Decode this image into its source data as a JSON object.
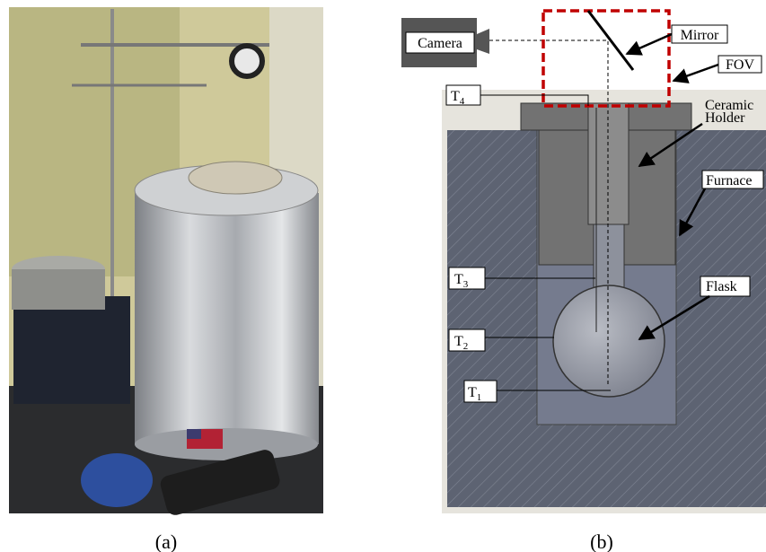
{
  "panel_a": {
    "caption": "(a)"
  },
  "panel_b": {
    "caption": "(b)",
    "camera": "Camera",
    "mirror": "Mirror",
    "fov": "FOV",
    "ceramic_holder": [
      "Ceramic",
      "Holder"
    ],
    "furnace": "Furnace",
    "flask": "Flask",
    "t4": {
      "symbol": "T",
      "index": "4"
    },
    "t3": {
      "symbol": "T",
      "index": "3"
    },
    "t2": {
      "symbol": "T",
      "index": "2"
    },
    "t1": {
      "symbol": "T",
      "index": "1"
    }
  }
}
